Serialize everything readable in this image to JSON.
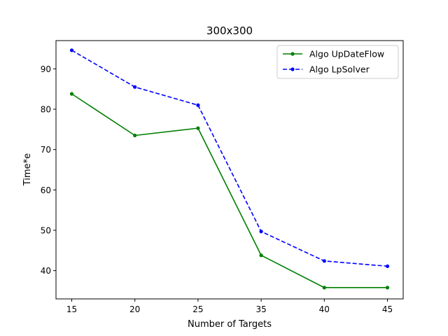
{
  "chart_data": {
    "type": "line",
    "title": "300x300",
    "xlabel": "Number of Targets",
    "ylabel": "Time*e",
    "categories": [
      "15",
      "20",
      "25",
      "35",
      "40",
      "45"
    ],
    "y_ticks": [
      40,
      50,
      60,
      70,
      80,
      90
    ],
    "ylim": [
      33,
      97
    ],
    "grid": false,
    "legend_position": "top-right",
    "series": [
      {
        "name": "Algo UpDateFlow",
        "color": "#008000",
        "line_style": "solid",
        "marker": "point",
        "values": [
          83.8,
          73.5,
          75.3,
          43.8,
          35.8,
          35.8
        ]
      },
      {
        "name": "Algo LpSolver",
        "color": "#0000ff",
        "line_style": "dashed",
        "marker": "point",
        "values": [
          94.6,
          85.5,
          81.0,
          49.7,
          42.4,
          41.1
        ]
      }
    ]
  }
}
